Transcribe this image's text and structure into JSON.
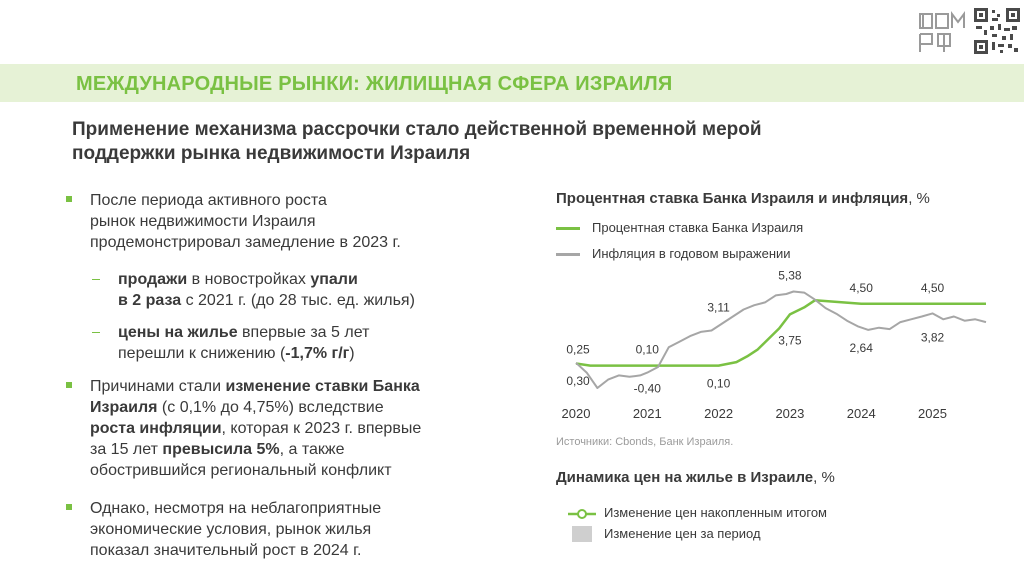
{
  "header": {
    "title": "МЕЖДУНАРОДНЫЕ РЫНКИ: ЖИЛИЩНАЯ СФЕРА ИЗРАИЛЯ",
    "logo_text": "ДОМ РФ"
  },
  "subtitle": {
    "line1": "Применение механизма рассрочки стало действенной временной мерой",
    "line2": "поддержки рынка недвижимости Израиля"
  },
  "bullets": [
    {
      "l1": "После периода активного роста",
      "l2": "рынок недвижимости Израиля",
      "l3": "продемонстрировал замедление в 2023 г."
    },
    {
      "a_bold": "продажи",
      "a_text": " в новостройках ",
      "a_bold2": "упали",
      "b_bold": "в 2 раза",
      "b_text": " с 2021 г. (до 28 тыс. ед. жилья)"
    },
    {
      "a_bold": "цены на жилье",
      "a_text": " впервые за 5 лет",
      "b_text": "перешли к снижению (",
      "b_bold": "-1,7% г/г",
      "b_end": ")"
    },
    {
      "l1_text": "Причинами стали ",
      "l1_bold": "изменение ставки Банка",
      "l2_bold": "Израиля",
      "l2_text": " (с 0,1% до 4,75%) вследствие",
      "l3_bold": "роста инфляции",
      "l3_text": ", которая к 2023 г. впервые",
      "l4_text": "за 15 лет ",
      "l4_bold": "превысила 5%",
      "l4_end": ", а также",
      "l5": "обострившийся региональный конфликт"
    },
    {
      "l1": "Однако, несмотря на неблагоприятные",
      "l2": "экономические условия, рынок жилья",
      "l3": "показал значительный рост в 2024 г."
    }
  ],
  "chart1": {
    "title_bold": "Процентная ставка Банка Израиля и инфляция",
    "title_unit": ", %",
    "legend_rate": "Процентная ставка Банка Израиля",
    "legend_inflation": "Инфляция в годовом выражении",
    "source": "Источники: Cbonds, Банк Израиля.",
    "colors": {
      "rate": "#7ac143",
      "inflation": "#a6a6a6"
    }
  },
  "chart2": {
    "title_bold": "Динамика цен на жилье в Израиле",
    "title_unit": ", %",
    "legend_cum": "Изменение цен накопленным итогом",
    "legend_period": "Изменение цен за период"
  },
  "chart_data": {
    "type": "line",
    "x_ticks": [
      "2020",
      "2021",
      "2022",
      "2023",
      "2024",
      "2025"
    ],
    "xlim": [
      2020,
      2025.75
    ],
    "ylim": [
      -1.5,
      6.2
    ],
    "series": [
      {
        "name": "Процентная ставка Банка Израиля",
        "x": [
          2020,
          2020.2,
          2021,
          2022,
          2022.25,
          2022.4,
          2022.55,
          2022.7,
          2022.85,
          2023.0,
          2023.2,
          2023.35,
          2024.0,
          2025.75
        ],
        "y": [
          0.25,
          0.1,
          0.1,
          0.1,
          0.35,
          0.75,
          1.25,
          2.0,
          2.75,
          3.75,
          4.25,
          4.75,
          4.5,
          4.5
        ]
      },
      {
        "name": "Инфляция в годовом выражении",
        "x": [
          2020,
          2020.15,
          2020.3,
          2020.45,
          2020.6,
          2020.75,
          2020.9,
          2021.0,
          2021.15,
          2021.3,
          2021.45,
          2021.6,
          2021.75,
          2021.9,
          2022.05,
          2022.2,
          2022.35,
          2022.5,
          2022.65,
          2022.8,
          2022.95,
          2023.05,
          2023.2,
          2023.35,
          2023.5,
          2023.65,
          2023.8,
          2023.95,
          2024.1,
          2024.25,
          2024.4,
          2024.55,
          2024.7,
          2024.85,
          2025.0,
          2025.15,
          2025.3,
          2025.45,
          2025.6,
          2025.75
        ],
        "y": [
          0.3,
          -0.4,
          -1.5,
          -0.9,
          -0.6,
          -0.7,
          -0.6,
          -0.4,
          0.0,
          1.4,
          1.8,
          2.2,
          2.5,
          2.6,
          3.1,
          3.6,
          4.1,
          4.4,
          4.6,
          5.1,
          5.2,
          5.38,
          5.3,
          4.8,
          4.2,
          3.8,
          3.3,
          2.9,
          2.64,
          2.8,
          2.7,
          3.2,
          3.4,
          3.6,
          3.82,
          3.4,
          3.6,
          3.3,
          3.4,
          3.2
        ]
      }
    ],
    "annotations": [
      {
        "text": "0,25",
        "series": "rate",
        "x": 2020,
        "y": 0.25
      },
      {
        "text": "0,30",
        "series": "inflation",
        "x": 2020,
        "y": 0.3
      },
      {
        "text": "0,10",
        "series": "rate",
        "x": 2021,
        "y": 0.1
      },
      {
        "text": "-0,40",
        "series": "inflation",
        "x": 2021,
        "y": -0.4
      },
      {
        "text": "3,11",
        "series": "inflation",
        "x": 2022,
        "y": 3.11
      },
      {
        "text": "0,10",
        "series": "rate",
        "x": 2022,
        "y": 0.1
      },
      {
        "text": "5,38",
        "series": "inflation",
        "x": 2023,
        "y": 5.38
      },
      {
        "text": "3,75",
        "series": "rate",
        "x": 2023,
        "y": 3.75
      },
      {
        "text": "4,50",
        "series": "rate",
        "x": 2024,
        "y": 4.5
      },
      {
        "text": "2,64",
        "series": "inflation",
        "x": 2024,
        "y": 2.64
      },
      {
        "text": "4,50",
        "series": "rate",
        "x": 2025,
        "y": 4.5
      },
      {
        "text": "3,82",
        "series": "inflation",
        "x": 2025,
        "y": 3.82
      }
    ]
  }
}
